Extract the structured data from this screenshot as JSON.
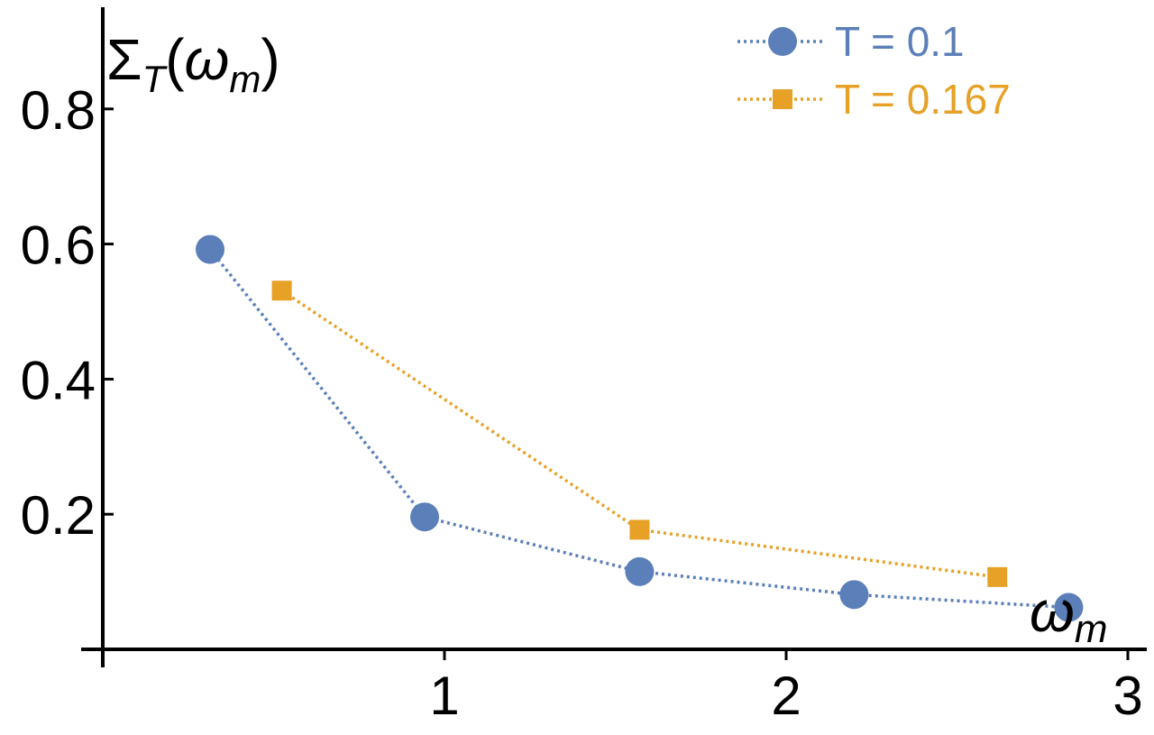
{
  "chart_data": {
    "type": "line",
    "title": "",
    "ylabel": "Σ_T(ω_m)",
    "ylabel_parts": {
      "main": "Σ",
      "sub": "T",
      "open": "(",
      "arg": "ω",
      "arg_sub": "m",
      "close": ")"
    },
    "xlabel_parts": {
      "main": "ω",
      "sub": "m"
    },
    "xlim": [
      0,
      3
    ],
    "ylim": [
      0,
      0.8
    ],
    "x_ticks": [
      1,
      2,
      3
    ],
    "y_ticks": [
      0.2,
      0.4,
      0.6,
      0.8
    ],
    "x_tick_labels": [
      "1",
      "2",
      "3"
    ],
    "y_tick_labels": [
      "0.2",
      "0.4",
      "0.6",
      "0.8"
    ],
    "grid": false,
    "legend_position": "top-right",
    "series": [
      {
        "name": "T = 0.1",
        "marker": "circle",
        "line_style": "dotted",
        "color": "#5b7fb8",
        "x": [
          0.314,
          0.942,
          1.571,
          2.199,
          2.827
        ],
        "y": [
          0.592,
          0.196,
          0.115,
          0.081,
          0.062
        ]
      },
      {
        "name": "T = 0.167",
        "marker": "square",
        "line_style": "dotted",
        "color": "#e6a126",
        "x": [
          0.524,
          1.571,
          2.618
        ],
        "y": [
          0.531,
          0.177,
          0.107
        ]
      }
    ]
  }
}
